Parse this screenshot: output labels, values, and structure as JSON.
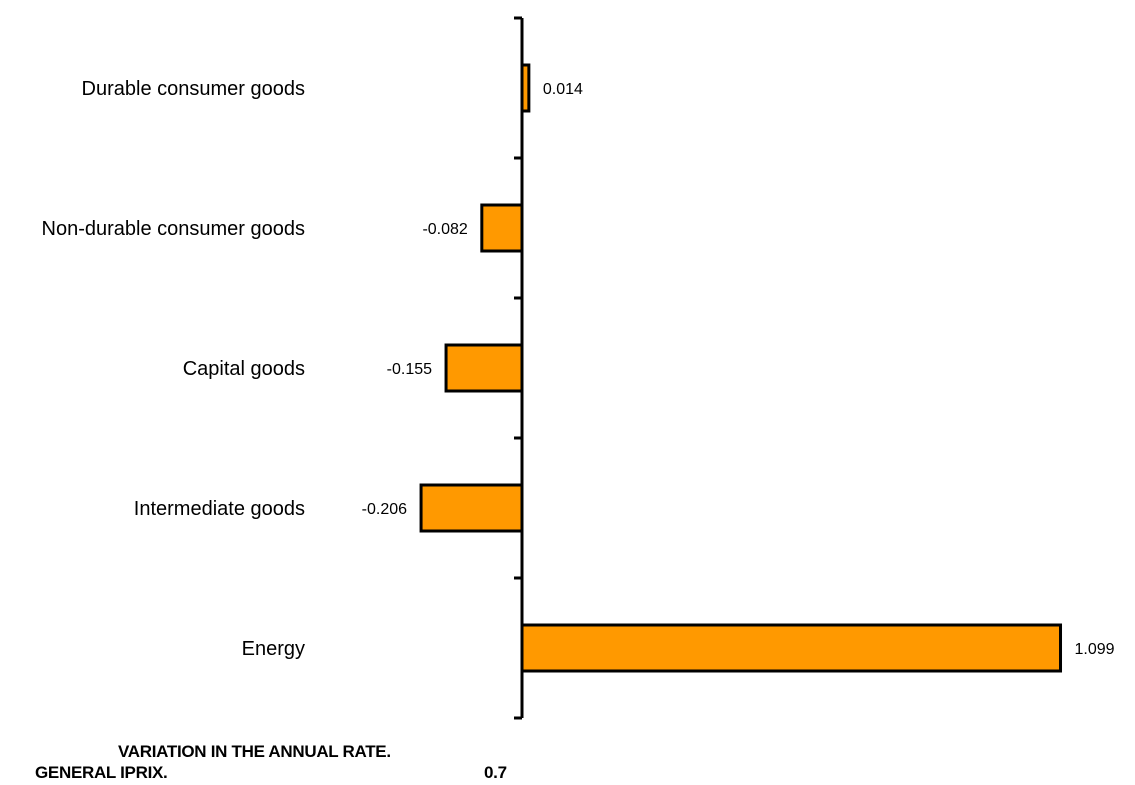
{
  "chart_data": {
    "type": "bar",
    "orientation": "horizontal",
    "categories": [
      "Durable consumer goods",
      "Non-durable consumer goods",
      "Capital goods",
      "Intermediate goods",
      "Energy"
    ],
    "values": [
      0.014,
      -0.082,
      -0.155,
      -0.206,
      1.099
    ],
    "value_labels": [
      "0.014",
      "-0.082",
      "-0.155",
      "-0.206",
      "1.099"
    ],
    "title": "",
    "xlabel": "",
    "ylabel": "",
    "grid": false,
    "bar_color": "#FF9900",
    "bar_edge_color": "#000000"
  },
  "footer": {
    "line1": "VARIATION IN THE ANNUAL RATE.",
    "line2": "GENERAL IPRIX.",
    "general_value": "0.7"
  }
}
